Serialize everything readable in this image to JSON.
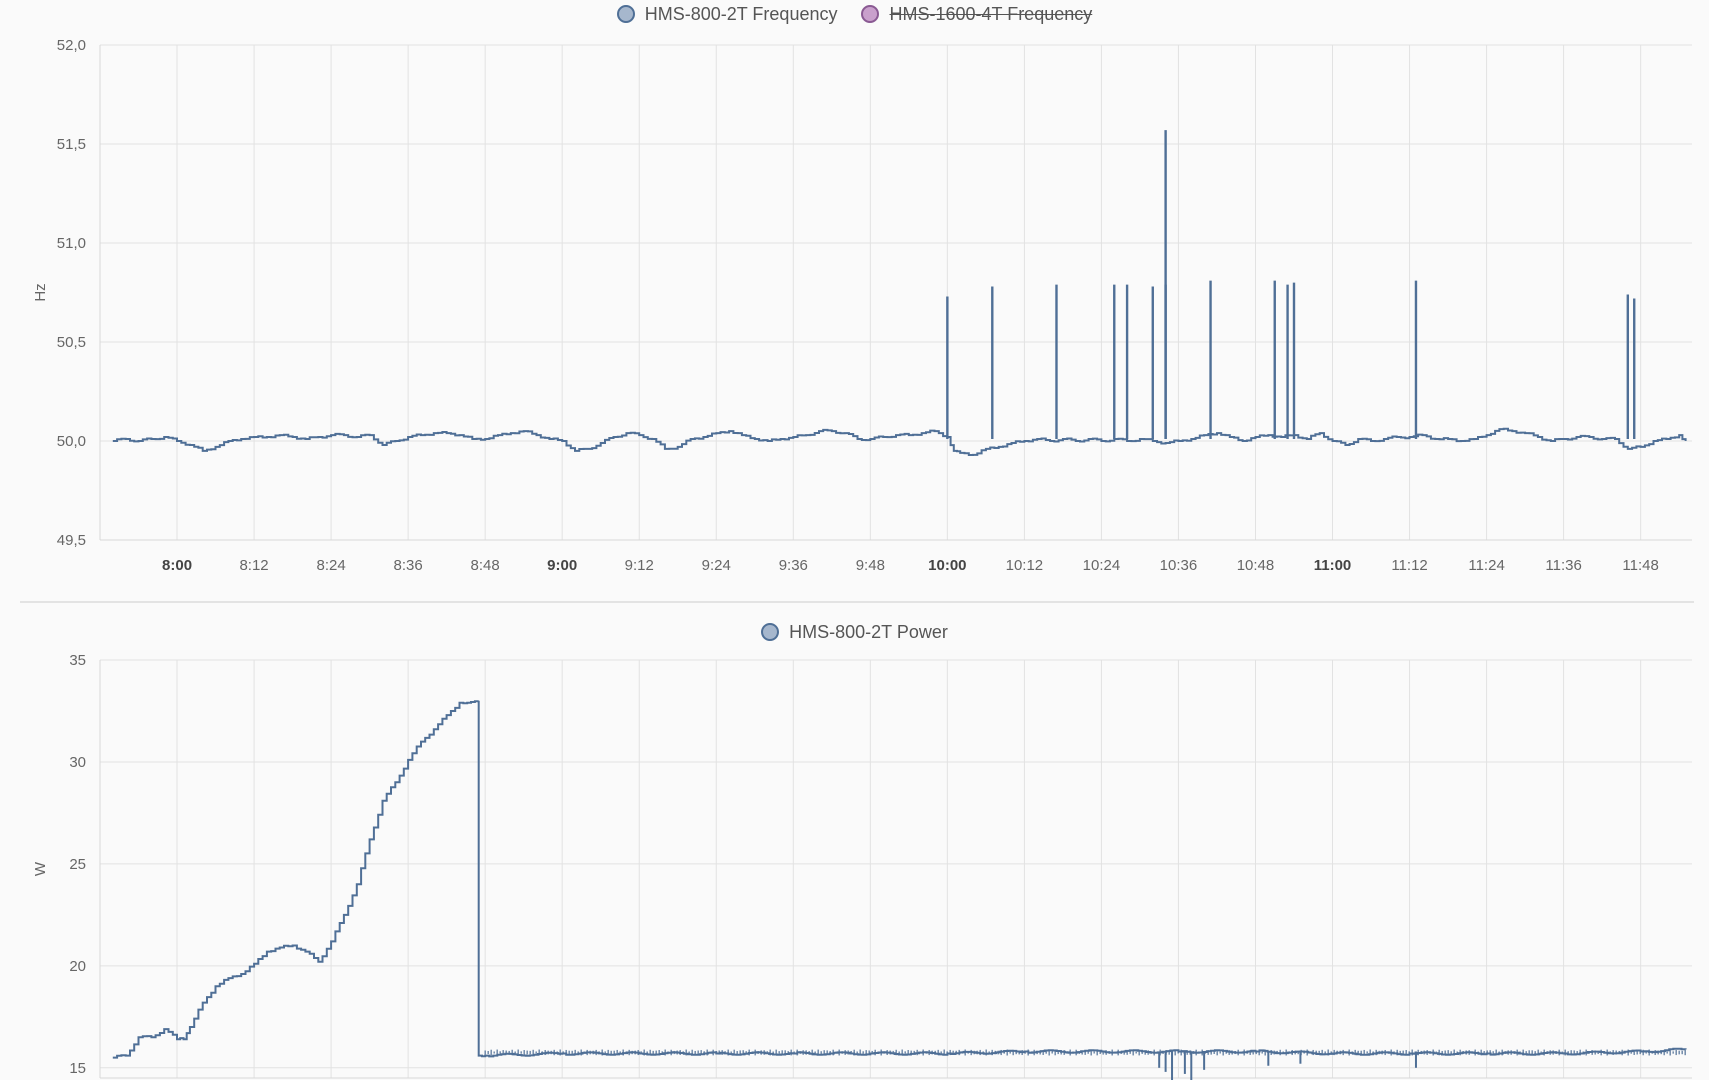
{
  "chart_data": [
    {
      "type": "line",
      "legend": [
        {
          "name": "HMS-800-2T Frequency",
          "color": "#a6b7cd",
          "stroke": "#4f6f96",
          "hidden": false
        },
        {
          "name": "HMS-1600-4T Frequency",
          "color": "#c9a0cc",
          "stroke": "#8a5a93",
          "hidden": true
        }
      ],
      "ylabel": "Hz",
      "ylim": [
        49.5,
        52.0
      ],
      "yticks": [
        "52,0",
        "51,5",
        "51,0",
        "50,5",
        "50,0",
        "49,5"
      ],
      "ytick_values": [
        52.0,
        51.5,
        51.0,
        50.5,
        50.0,
        49.5
      ],
      "xlim": [
        "07:48",
        "11:56"
      ],
      "xticks": [
        {
          "label": "8:00",
          "time": "08:00",
          "bold": true
        },
        {
          "label": "8:12",
          "time": "08:12",
          "bold": false
        },
        {
          "label": "8:24",
          "time": "08:24",
          "bold": false
        },
        {
          "label": "8:36",
          "time": "08:36",
          "bold": false
        },
        {
          "label": "8:48",
          "time": "08:48",
          "bold": false
        },
        {
          "label": "9:00",
          "time": "09:00",
          "bold": true
        },
        {
          "label": "9:12",
          "time": "09:12",
          "bold": false
        },
        {
          "label": "9:24",
          "time": "09:24",
          "bold": false
        },
        {
          "label": "9:36",
          "time": "09:36",
          "bold": false
        },
        {
          "label": "9:48",
          "time": "09:48",
          "bold": false
        },
        {
          "label": "10:00",
          "time": "10:00",
          "bold": true
        },
        {
          "label": "10:12",
          "time": "10:12",
          "bold": false
        },
        {
          "label": "10:24",
          "time": "10:24",
          "bold": false
        },
        {
          "label": "10:36",
          "time": "10:36",
          "bold": false
        },
        {
          "label": "10:48",
          "time": "10:48",
          "bold": false
        },
        {
          "label": "11:00",
          "time": "11:00",
          "bold": true
        },
        {
          "label": "11:12",
          "time": "11:12",
          "bold": false
        },
        {
          "label": "11:24",
          "time": "11:24",
          "bold": false
        },
        {
          "label": "11:36",
          "time": "11:36",
          "bold": false
        },
        {
          "label": "11:48",
          "time": "11:48",
          "bold": false
        }
      ],
      "grid": true,
      "series": [
        {
          "name": "HMS-800-2T Frequency",
          "color": "#4f6f96",
          "points": [
            [
              "07:50",
              50.0
            ],
            [
              "07:52",
              50.01
            ],
            [
              "07:54",
              50.0
            ],
            [
              "07:56",
              50.01
            ],
            [
              "07:58",
              50.02
            ],
            [
              "08:00",
              50.0
            ],
            [
              "08:02",
              49.98
            ],
            [
              "08:04",
              49.95
            ],
            [
              "08:06",
              49.97
            ],
            [
              "08:08",
              50.0
            ],
            [
              "08:10",
              50.01
            ],
            [
              "08:12",
              50.02
            ],
            [
              "08:14",
              50.02
            ],
            [
              "08:16",
              50.03
            ],
            [
              "08:18",
              50.02
            ],
            [
              "08:20",
              50.01
            ],
            [
              "08:22",
              50.02
            ],
            [
              "08:24",
              50.03
            ],
            [
              "08:26",
              50.03
            ],
            [
              "08:28",
              50.02
            ],
            [
              "08:30",
              50.03
            ],
            [
              "08:32",
              49.98
            ],
            [
              "08:34",
              50.0
            ],
            [
              "08:36",
              50.02
            ],
            [
              "08:38",
              50.03
            ],
            [
              "08:40",
              50.04
            ],
            [
              "08:42",
              50.04
            ],
            [
              "08:44",
              50.03
            ],
            [
              "08:46",
              50.01
            ],
            [
              "08:48",
              50.01
            ],
            [
              "08:50",
              50.03
            ],
            [
              "08:52",
              50.04
            ],
            [
              "08:54",
              50.05
            ],
            [
              "08:56",
              50.03
            ],
            [
              "08:58",
              50.01
            ],
            [
              "09:00",
              50.0
            ],
            [
              "09:02",
              49.95
            ],
            [
              "09:04",
              49.96
            ],
            [
              "09:06",
              49.99
            ],
            [
              "09:08",
              50.02
            ],
            [
              "09:10",
              50.04
            ],
            [
              "09:12",
              50.03
            ],
            [
              "09:14",
              50.01
            ],
            [
              "09:16",
              49.96
            ],
            [
              "09:18",
              49.97
            ],
            [
              "09:20",
              50.01
            ],
            [
              "09:22",
              50.02
            ],
            [
              "09:24",
              50.04
            ],
            [
              "09:26",
              50.05
            ],
            [
              "09:28",
              50.03
            ],
            [
              "09:30",
              50.01
            ],
            [
              "09:32",
              50.0
            ],
            [
              "09:34",
              50.01
            ],
            [
              "09:36",
              50.02
            ],
            [
              "09:38",
              50.03
            ],
            [
              "09:40",
              50.05
            ],
            [
              "09:42",
              50.05
            ],
            [
              "09:44",
              50.04
            ],
            [
              "09:46",
              50.01
            ],
            [
              "09:48",
              50.01
            ],
            [
              "09:50",
              50.02
            ],
            [
              "09:52",
              50.03
            ],
            [
              "09:54",
              50.03
            ],
            [
              "09:56",
              50.04
            ],
            [
              "09:58",
              50.05
            ],
            [
              "10:00",
              50.02
            ],
            [
              "10:01",
              49.95
            ],
            [
              "10:02",
              49.94
            ],
            [
              "10:04",
              49.93
            ],
            [
              "10:06",
              49.96
            ],
            [
              "10:08",
              49.97
            ],
            [
              "10:10",
              49.99
            ],
            [
              "10:12",
              50.0
            ],
            [
              "10:14",
              50.01
            ],
            [
              "10:16",
              50.0
            ],
            [
              "10:18",
              50.01
            ],
            [
              "10:20",
              50.0
            ],
            [
              "10:22",
              50.01
            ],
            [
              "10:24",
              50.0
            ],
            [
              "10:26",
              50.01
            ],
            [
              "10:28",
              50.0
            ],
            [
              "10:30",
              50.01
            ],
            [
              "10:32",
              50.0
            ],
            [
              "10:34",
              49.99
            ],
            [
              "10:36",
              50.0
            ],
            [
              "10:38",
              50.01
            ],
            [
              "10:40",
              50.03
            ],
            [
              "10:42",
              50.04
            ],
            [
              "10:44",
              50.02
            ],
            [
              "10:46",
              50.0
            ],
            [
              "10:48",
              50.02
            ],
            [
              "10:50",
              50.03
            ],
            [
              "10:52",
              50.02
            ],
            [
              "10:54",
              50.03
            ],
            [
              "10:56",
              50.01
            ],
            [
              "10:58",
              50.04
            ],
            [
              "11:00",
              50.0
            ],
            [
              "11:02",
              49.98
            ],
            [
              "11:04",
              50.01
            ],
            [
              "11:06",
              50.0
            ],
            [
              "11:08",
              50.01
            ],
            [
              "11:10",
              50.02
            ],
            [
              "11:12",
              50.02
            ],
            [
              "11:14",
              50.03
            ],
            [
              "11:16",
              50.01
            ],
            [
              "11:18",
              50.01
            ],
            [
              "11:20",
              50.0
            ],
            [
              "11:22",
              50.01
            ],
            [
              "11:24",
              50.03
            ],
            [
              "11:26",
              50.06
            ],
            [
              "11:28",
              50.05
            ],
            [
              "11:30",
              50.04
            ],
            [
              "11:32",
              50.02
            ],
            [
              "11:34",
              50.0
            ],
            [
              "11:36",
              50.01
            ],
            [
              "11:38",
              50.02
            ],
            [
              "11:40",
              50.02
            ],
            [
              "11:42",
              50.01
            ],
            [
              "11:44",
              50.01
            ],
            [
              "11:46",
              49.96
            ],
            [
              "11:48",
              49.97
            ],
            [
              "11:50",
              50.0
            ],
            [
              "11:52",
              50.01
            ],
            [
              "11:54",
              50.03
            ],
            [
              "11:55",
              50.0
            ]
          ],
          "spikes": [
            [
              "10:00",
              50.73
            ],
            [
              "10:07",
              50.78
            ],
            [
              "10:17",
              50.79
            ],
            [
              "10:26",
              50.79
            ],
            [
              "10:28",
              50.79
            ],
            [
              "10:32",
              50.78
            ],
            [
              "10:34",
              51.57
            ],
            [
              "10:34",
              50.79
            ],
            [
              "10:41",
              50.81
            ],
            [
              "10:51",
              50.81
            ],
            [
              "10:53",
              50.79
            ],
            [
              "10:54",
              50.8
            ],
            [
              "11:13",
              50.81
            ],
            [
              "11:46",
              50.74
            ],
            [
              "11:47",
              50.72
            ]
          ]
        }
      ]
    },
    {
      "type": "line",
      "legend": [
        {
          "name": "HMS-800-2T Power",
          "color": "#a6b7cd",
          "stroke": "#4f6f96",
          "hidden": false
        }
      ],
      "ylabel": "W",
      "ylim": [
        14.5,
        35
      ],
      "yticks": [
        "35",
        "30",
        "25",
        "20",
        "15"
      ],
      "ytick_values": [
        35,
        30,
        25,
        20,
        15
      ],
      "xlim": [
        "07:48",
        "11:56"
      ],
      "grid": true,
      "series": [
        {
          "name": "HMS-800-2T Power",
          "color": "#4f6f96",
          "points": [
            [
              "07:50",
              15.5
            ],
            [
              "07:52",
              15.6
            ],
            [
              "07:54",
              16.5
            ],
            [
              "07:56",
              16.5
            ],
            [
              "07:58",
              16.9
            ],
            [
              "08:00",
              16.4
            ],
            [
              "08:01",
              16.4
            ],
            [
              "08:02",
              17.0
            ],
            [
              "08:04",
              18.2
            ],
            [
              "08:06",
              19.0
            ],
            [
              "08:08",
              19.4
            ],
            [
              "08:10",
              19.6
            ],
            [
              "08:12",
              20.1
            ],
            [
              "08:14",
              20.7
            ],
            [
              "08:16",
              20.9
            ],
            [
              "08:18",
              21.0
            ],
            [
              "08:20",
              20.7
            ],
            [
              "08:22",
              20.2
            ],
            [
              "08:24",
              21.2
            ],
            [
              "08:26",
              22.5
            ],
            [
              "08:28",
              24.0
            ],
            [
              "08:30",
              26.2
            ],
            [
              "08:32",
              28.1
            ],
            [
              "08:34",
              29.0
            ],
            [
              "08:36",
              30.1
            ],
            [
              "08:38",
              31.0
            ],
            [
              "08:40",
              31.6
            ],
            [
              "08:42",
              32.3
            ],
            [
              "08:44",
              32.9
            ],
            [
              "08:47",
              33.0
            ],
            [
              "08:47",
              15.6
            ],
            [
              "08:48",
              15.6
            ],
            [
              "09:00",
              15.7
            ],
            [
              "09:12",
              15.7
            ],
            [
              "09:24",
              15.7
            ],
            [
              "09:36",
              15.7
            ],
            [
              "09:48",
              15.7
            ],
            [
              "10:00",
              15.7
            ],
            [
              "10:12",
              15.8
            ],
            [
              "10:24",
              15.8
            ],
            [
              "10:36",
              15.8
            ],
            [
              "10:48",
              15.8
            ],
            [
              "11:00",
              15.7
            ],
            [
              "11:12",
              15.7
            ],
            [
              "11:24",
              15.7
            ],
            [
              "11:36",
              15.7
            ],
            [
              "11:48",
              15.8
            ],
            [
              "11:55",
              15.9
            ]
          ],
          "dips": [
            [
              "10:33",
              15.0
            ],
            [
              "10:34",
              14.8
            ],
            [
              "10:35",
              14.3
            ],
            [
              "10:37",
              14.7
            ],
            [
              "10:38",
              14.2
            ],
            [
              "10:40",
              14.9
            ],
            [
              "10:50",
              15.1
            ],
            [
              "10:55",
              15.2
            ],
            [
              "11:13",
              15.0
            ]
          ]
        }
      ]
    }
  ]
}
